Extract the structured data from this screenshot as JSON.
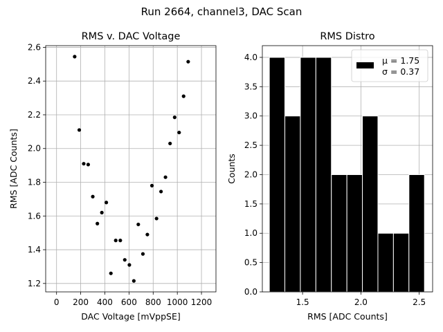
{
  "figure": {
    "suptitle": "Run 2664, channel3, DAC Scan"
  },
  "chart_data": [
    {
      "type": "scatter",
      "title": "RMS v. DAC Voltage",
      "xlabel": "DAC Voltage [mVppSE]",
      "ylabel": "RMS [ADC Counts]",
      "xlim": [
        -90,
        1320
      ],
      "ylim": [
        1.15,
        2.61
      ],
      "xticks": [
        0,
        200,
        400,
        600,
        800,
        1000,
        1200
      ],
      "xtick_labels": [
        "0",
        "200",
        "400",
        "600",
        "800",
        "1000",
        "1200"
      ],
      "yticks": [
        1.2,
        1.4,
        1.6,
        1.8,
        2.0,
        2.2,
        2.4,
        2.6
      ],
      "ytick_labels": [
        "1.2",
        "1.4",
        "1.6",
        "1.8",
        "2.0",
        "2.2",
        "2.4",
        "2.6"
      ],
      "grid": true,
      "marker_color": "#000000",
      "points": [
        {
          "x": 150,
          "y": 2.545
        },
        {
          "x": 188,
          "y": 2.11
        },
        {
          "x": 225,
          "y": 1.91
        },
        {
          "x": 262,
          "y": 1.905
        },
        {
          "x": 300,
          "y": 1.715
        },
        {
          "x": 338,
          "y": 1.555
        },
        {
          "x": 375,
          "y": 1.62
        },
        {
          "x": 412,
          "y": 1.68
        },
        {
          "x": 450,
          "y": 1.26
        },
        {
          "x": 490,
          "y": 1.455
        },
        {
          "x": 528,
          "y": 1.455
        },
        {
          "x": 565,
          "y": 1.34
        },
        {
          "x": 603,
          "y": 1.31
        },
        {
          "x": 640,
          "y": 1.215
        },
        {
          "x": 677,
          "y": 1.55
        },
        {
          "x": 715,
          "y": 1.375
        },
        {
          "x": 752,
          "y": 1.49
        },
        {
          "x": 790,
          "y": 1.78
        },
        {
          "x": 828,
          "y": 1.585
        },
        {
          "x": 865,
          "y": 1.745
        },
        {
          "x": 902,
          "y": 1.83
        },
        {
          "x": 940,
          "y": 2.03
        },
        {
          "x": 978,
          "y": 2.185
        },
        {
          "x": 1015,
          "y": 2.095
        },
        {
          "x": 1052,
          "y": 2.31
        },
        {
          "x": 1090,
          "y": 2.515
        }
      ]
    },
    {
      "type": "bar",
      "subtype": "histogram",
      "title": "RMS Distro",
      "xlabel": "RMS [ADC Counts]",
      "ylabel": "Counts",
      "xlim": [
        1.155,
        2.615
      ],
      "ylim": [
        0,
        4.2
      ],
      "xticks": [
        1.5,
        2.0,
        2.5
      ],
      "xtick_labels": [
        "1.5",
        "2.0",
        "2.5"
      ],
      "yticks": [
        0,
        0.5,
        1.0,
        1.5,
        2.0,
        2.5,
        3.0,
        3.5,
        4.0
      ],
      "ytick_labels": [
        "0.0",
        "0.5",
        "1.0",
        "1.5",
        "2.0",
        "2.5",
        "3.0",
        "3.5",
        "4.0"
      ],
      "grid": true,
      "bar_color": "#000000",
      "bar_edge_color": "#ffffff",
      "bin_edges": [
        1.215,
        1.348,
        1.481,
        1.614,
        1.747,
        1.88,
        2.013,
        2.146,
        2.279,
        2.412,
        2.545
      ],
      "counts": [
        4,
        3,
        4,
        4,
        2,
        2,
        3,
        1,
        1,
        2
      ],
      "legend": {
        "placement": "upper right",
        "entries": [
          "μ = 1.75",
          "σ = 0.37"
        ]
      }
    }
  ]
}
